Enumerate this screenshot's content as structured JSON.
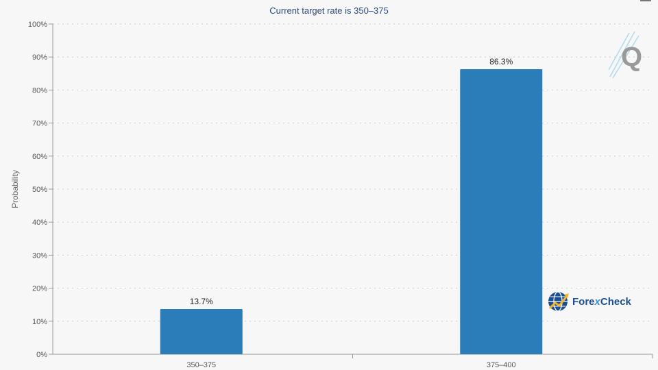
{
  "chart_data": {
    "type": "bar",
    "title": "",
    "subtitle": "Current target rate is 350–375",
    "xlabel": "",
    "ylabel": "Probability",
    "ylim": [
      0,
      100
    ],
    "yticks": [
      "0%",
      "10%",
      "20%",
      "30%",
      "40%",
      "50%",
      "60%",
      "70%",
      "80%",
      "90%",
      "100%"
    ],
    "categories": [
      "350–375",
      "375–400"
    ],
    "values": [
      13.7,
      86.3
    ],
    "data_labels": [
      "13.7%",
      "86.3%"
    ],
    "grid": true,
    "bar_color": "#2a7db8"
  },
  "watermarks": {
    "forexcheck_prefix": "Fore",
    "forexcheck_x": "x",
    "forexcheck_suffix": "Check",
    "q_letter": "Q"
  }
}
